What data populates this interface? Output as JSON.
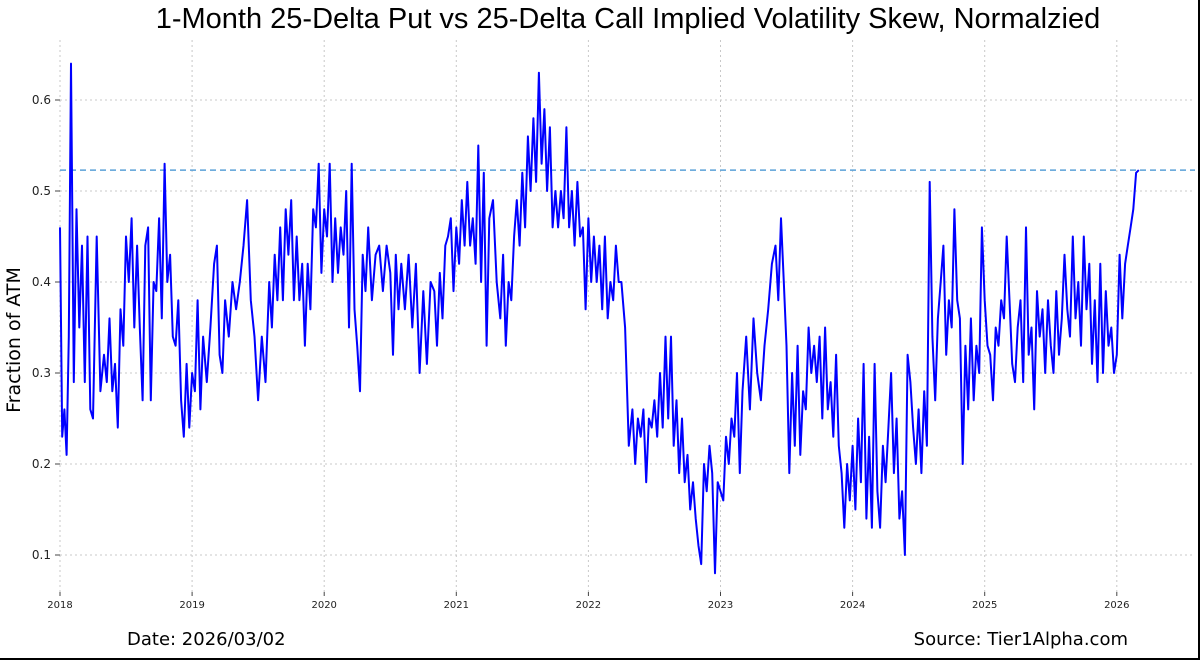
{
  "chart_data": {
    "type": "line",
    "title": "1-Month 25-Delta Put vs 25-Delta Call Implied Volatility Skew, Normalzied",
    "xlabel": "",
    "ylabel": "Fraction of ATM",
    "xlim": [
      "2018-01-01",
      "2026-08-01"
    ],
    "ylim": [
      0.06,
      0.665
    ],
    "yticks": [
      "0.1",
      "0.2",
      "0.3",
      "0.4",
      "0.5",
      "0.6"
    ],
    "xticks": [
      "2018",
      "2019",
      "2020",
      "2021",
      "2022",
      "2023",
      "2024",
      "2025",
      "2026"
    ],
    "grid": true,
    "line_color": "#0000ff",
    "reference_line": {
      "value": 0.523,
      "style": "dashed",
      "color": "#5aa0d8"
    },
    "values_by_month": {
      "2018-01": [
        0.46,
        0.23,
        0.26,
        0.21,
        0.34
      ],
      "2018-02": [
        0.64,
        0.29,
        0.48,
        0.35
      ],
      "2018-03": [
        0.44,
        0.29,
        0.45,
        0.26
      ],
      "2018-04": [
        0.25,
        0.45,
        0.28
      ],
      "2018-05": [
        0.32,
        0.29,
        0.36,
        0.28
      ],
      "2018-06": [
        0.31,
        0.24,
        0.37,
        0.33
      ],
      "2018-07": [
        0.45,
        0.4,
        0.47,
        0.35
      ],
      "2018-08": [
        0.44,
        0.35,
        0.27,
        0.44
      ],
      "2018-09": [
        0.46,
        0.27,
        0.4,
        0.39
      ],
      "2018-10": [
        0.47,
        0.36,
        0.53,
        0.4
      ],
      "2018-11": [
        0.43,
        0.34,
        0.33,
        0.38
      ],
      "2018-12": [
        0.27,
        0.23,
        0.31,
        0.24
      ],
      "2019-01": [
        0.3,
        0.28,
        0.38,
        0.26
      ],
      "2019-02": [
        0.34,
        0.29,
        0.35
      ],
      "2019-03": [
        0.42,
        0.44,
        0.32,
        0.3
      ],
      "2019-04": [
        0.38,
        0.34,
        0.4
      ],
      "2019-05": [
        0.37,
        0.4,
        0.44
      ],
      "2019-06": [
        0.49,
        0.38,
        0.34
      ],
      "2019-07": [
        0.27,
        0.34,
        0.29
      ],
      "2019-08": [
        0.4,
        0.35,
        0.43,
        0.38
      ],
      "2019-09": [
        0.46,
        0.38,
        0.48,
        0.43
      ],
      "2019-10": [
        0.49,
        0.38,
        0.45,
        0.38
      ],
      "2019-11": [
        0.42,
        0.33,
        0.42,
        0.37
      ],
      "2019-12": [
        0.48,
        0.46,
        0.53,
        0.41
      ],
      "2020-01": [
        0.48,
        0.45,
        0.53,
        0.4
      ],
      "2020-02": [
        0.47,
        0.41,
        0.46,
        0.43
      ],
      "2020-03": [
        0.5,
        0.35,
        0.53,
        0.37
      ],
      "2020-04": [
        0.33,
        0.28,
        0.43,
        0.39
      ],
      "2020-05": [
        0.46,
        0.38,
        0.43
      ],
      "2020-06": [
        0.44,
        0.39,
        0.44
      ],
      "2020-07": [
        0.41,
        0.32,
        0.43,
        0.37
      ],
      "2020-08": [
        0.42,
        0.37,
        0.43
      ],
      "2020-09": [
        0.35,
        0.42,
        0.3
      ],
      "2020-10": [
        0.39,
        0.31,
        0.4
      ],
      "2020-11": [
        0.39,
        0.33,
        0.41,
        0.36
      ],
      "2020-12": [
        0.44,
        0.45,
        0.47,
        0.39
      ],
      "2021-01": [
        0.46,
        0.42,
        0.49,
        0.44
      ],
      "2021-02": [
        0.51,
        0.44,
        0.47,
        0.42
      ],
      "2021-03": [
        0.55,
        0.4,
        0.52,
        0.33
      ],
      "2021-04": [
        0.47,
        0.49,
        0.4
      ],
      "2021-05": [
        0.36,
        0.43,
        0.33,
        0.4
      ],
      "2021-06": [
        0.38,
        0.45,
        0.49,
        0.44
      ],
      "2021-07": [
        0.52,
        0.46,
        0.56,
        0.5
      ],
      "2021-08": [
        0.58,
        0.51,
        0.63,
        0.53
      ],
      "2021-09": [
        0.59,
        0.5,
        0.57,
        0.46
      ],
      "2021-10": [
        0.5,
        0.46,
        0.5,
        0.47
      ],
      "2021-11": [
        0.57,
        0.46,
        0.5,
        0.44
      ],
      "2021-12": [
        0.51,
        0.45,
        0.46,
        0.37
      ],
      "2022-01": [
        0.47,
        0.4,
        0.45,
        0.4
      ],
      "2022-02": [
        0.44,
        0.37,
        0.45,
        0.36
      ],
      "2022-03": [
        0.4,
        0.38,
        0.44,
        0.4
      ],
      "2022-04": [
        0.4,
        0.35,
        0.22
      ],
      "2022-05": [
        0.26,
        0.2,
        0.25,
        0.23
      ],
      "2022-06": [
        0.26,
        0.18,
        0.25,
        0.24
      ],
      "2022-07": [
        0.27,
        0.23,
        0.3,
        0.24
      ],
      "2022-08": [
        0.34,
        0.25,
        0.34,
        0.22
      ],
      "2022-09": [
        0.27,
        0.19,
        0.25,
        0.18
      ],
      "2022-10": [
        0.21,
        0.15,
        0.18,
        0.14
      ],
      "2022-11": [
        0.11,
        0.09,
        0.2,
        0.17
      ],
      "2022-12": [
        0.22,
        0.19,
        0.08,
        0.18
      ],
      "2023-01": [
        0.17,
        0.16,
        0.23,
        0.2
      ],
      "2023-02": [
        0.25,
        0.23,
        0.3,
        0.19
      ],
      "2023-03": [
        0.28,
        0.34,
        0.26
      ],
      "2023-04": [
        0.36,
        0.3,
        0.27
      ],
      "2023-05": [
        0.33,
        0.37,
        0.42
      ],
      "2023-06": [
        0.44,
        0.38,
        0.47,
        0.4
      ],
      "2023-07": [
        0.33,
        0.19,
        0.3,
        0.22
      ],
      "2023-08": [
        0.33,
        0.21,
        0.28,
        0.26
      ],
      "2023-09": [
        0.35,
        0.3,
        0.33,
        0.29
      ],
      "2023-10": [
        0.34,
        0.25,
        0.35,
        0.26
      ],
      "2023-11": [
        0.29,
        0.23,
        0.32,
        0.22
      ],
      "2023-12": [
        0.19,
        0.13,
        0.2,
        0.16
      ],
      "2024-01": [
        0.22,
        0.15,
        0.25,
        0.18
      ],
      "2024-02": [
        0.31,
        0.14,
        0.23,
        0.13
      ],
      "2024-03": [
        0.31,
        0.17,
        0.13,
        0.22
      ],
      "2024-04": [
        0.18,
        0.24,
        0.3,
        0.19
      ],
      "2024-05": [
        0.25,
        0.14,
        0.17,
        0.1
      ],
      "2024-06": [
        0.32,
        0.29,
        0.24,
        0.2
      ],
      "2024-07": [
        0.26,
        0.19,
        0.28,
        0.22
      ],
      "2024-08": [
        0.51,
        0.34,
        0.27,
        0.36
      ],
      "2024-09": [
        0.4,
        0.44,
        0.32,
        0.38
      ],
      "2024-10": [
        0.35,
        0.48,
        0.38,
        0.36
      ],
      "2024-11": [
        0.2,
        0.33,
        0.26,
        0.36
      ],
      "2024-12": [
        0.27,
        0.33,
        0.3,
        0.46
      ],
      "2025-01": [
        0.38,
        0.33,
        0.32,
        0.27
      ],
      "2025-02": [
        0.35,
        0.33,
        0.38,
        0.36
      ],
      "2025-03": [
        0.45,
        0.38,
        0.31,
        0.29
      ],
      "2025-04": [
        0.35,
        0.38,
        0.29,
        0.46
      ],
      "2025-05": [
        0.32,
        0.35,
        0.26,
        0.39
      ],
      "2025-06": [
        0.34,
        0.37,
        0.3,
        0.38
      ],
      "2025-07": [
        0.33,
        0.3,
        0.39,
        0.32
      ],
      "2025-08": [
        0.36,
        0.43,
        0.37,
        0.34
      ],
      "2025-09": [
        0.45,
        0.36,
        0.4,
        0.33
      ],
      "2025-10": [
        0.45,
        0.37,
        0.42,
        0.31
      ],
      "2025-11": [
        0.38,
        0.29,
        0.42,
        0.3
      ],
      "2025-12": [
        0.39,
        0.33,
        0.35,
        0.3
      ],
      "2026-01": [
        0.32,
        0.43,
        0.36,
        0.42
      ],
      "2026-02": [
        0.44,
        0.46,
        0.48,
        0.52
      ],
      "2026-03": [
        0.523
      ]
    }
  },
  "footer": {
    "date": "Date: 2026/03/02",
    "source": "Source: Tier1Alpha.com"
  }
}
